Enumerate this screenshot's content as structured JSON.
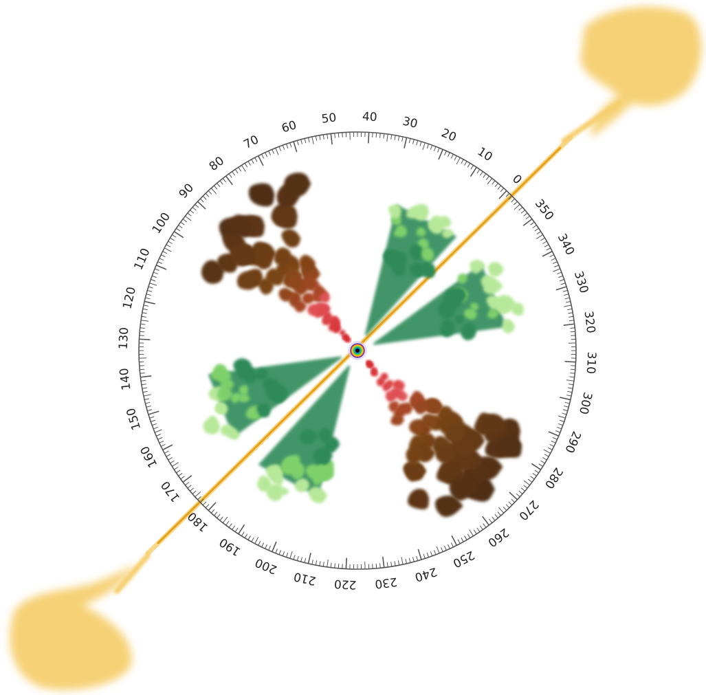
{
  "dial": {
    "labels": [
      "0",
      "10",
      "20",
      "30",
      "40",
      "50",
      "60",
      "70",
      "80",
      "90",
      "100",
      "110",
      "120",
      "130",
      "140",
      "150",
      "160",
      "170",
      "180",
      "190",
      "200",
      "210",
      "220",
      "230",
      "240",
      "250",
      "260",
      "270",
      "280",
      "290",
      "300",
      "310",
      "320",
      "330",
      "340",
      "350"
    ],
    "major_step_deg": 10,
    "minor_step_deg": 1,
    "zero_offset_deg": 47
  },
  "colors": {
    "ring": "#555555",
    "label": "#222222",
    "jet": "#e5a01c",
    "jet_light": "#f6cf6e",
    "lobe_brown_dark": "#4e2e12",
    "lobe_brown": "#7a4516",
    "lobe_red": "#d6262c",
    "lobe_green_dark": "#2f8a58",
    "lobe_green": "#7fd06a",
    "lobe_green_light": "#b7e89a",
    "core": "#6a3fb0"
  },
  "icons": {
    "center": "rainbow-core-icon",
    "jet_tail": "cloud-blob-icon"
  }
}
